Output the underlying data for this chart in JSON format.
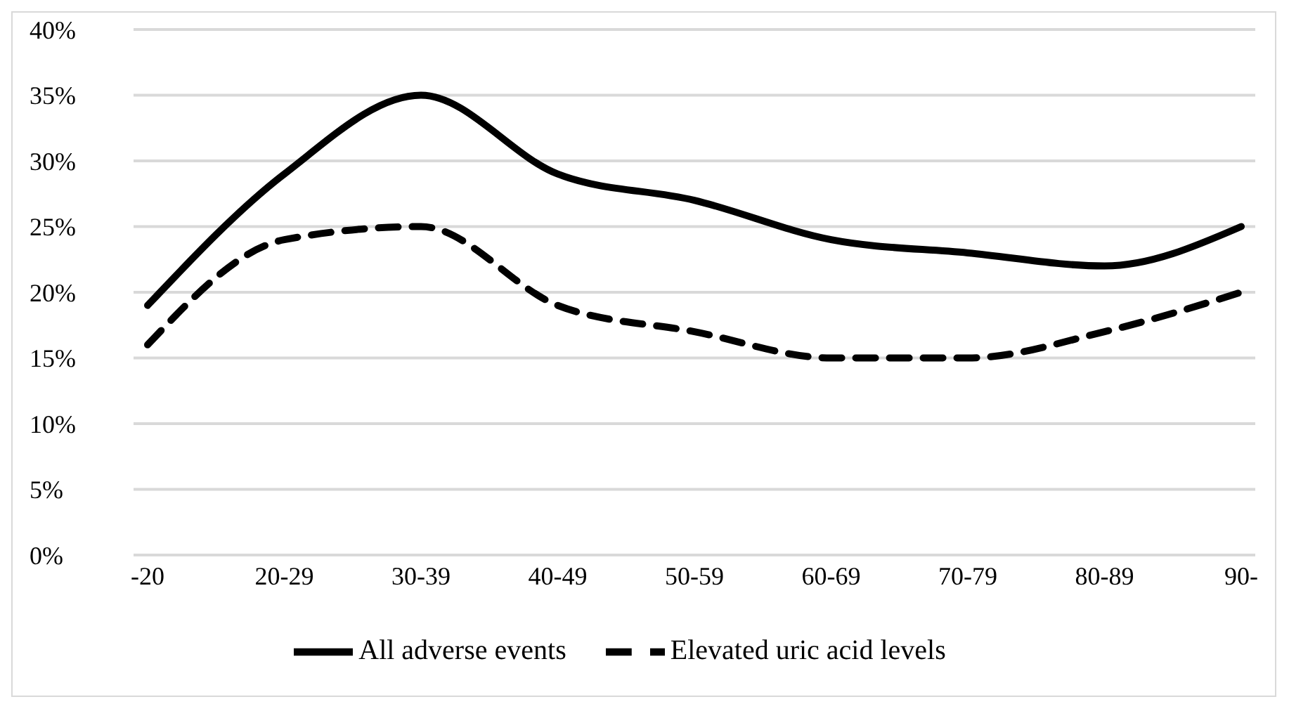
{
  "chart_data": {
    "type": "line",
    "categories": [
      "-20",
      "20-29",
      "30-39",
      "40-49",
      "50-59",
      "60-69",
      "70-79",
      "80-89",
      "90-"
    ],
    "series": [
      {
        "name": "All adverse events",
        "color": "#000000",
        "line_style": "solid",
        "values": [
          19,
          29,
          35,
          29,
          27,
          24,
          23,
          22,
          25
        ]
      },
      {
        "name": "Elevated uric acid levels",
        "color": "#000000",
        "line_style": "dashed",
        "values": [
          16,
          24,
          25,
          19,
          17,
          15,
          15,
          17,
          20
        ]
      }
    ],
    "ylim": [
      0,
      40
    ],
    "yticks": [
      {
        "value": 0,
        "label": "0%"
      },
      {
        "value": 5,
        "label": "5%"
      },
      {
        "value": 10,
        "label": "10%"
      },
      {
        "value": 15,
        "label": "15%"
      },
      {
        "value": 20,
        "label": "20%"
      },
      {
        "value": 25,
        "label": "25%"
      },
      {
        "value": 30,
        "label": "30%"
      },
      {
        "value": 35,
        "label": "35%"
      },
      {
        "value": 40,
        "label": "40%"
      }
    ],
    "grid": "y",
    "legend": "bottom",
    "marker": "none"
  }
}
